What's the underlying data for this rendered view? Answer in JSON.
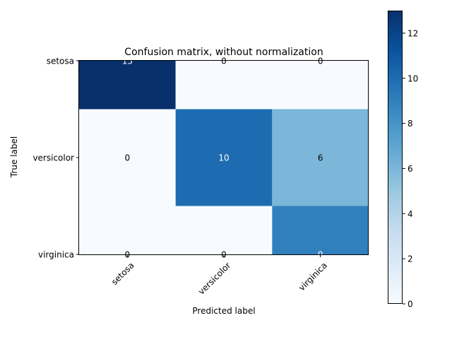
{
  "chart_data": {
    "type": "heatmap",
    "title": "Confusion matrix, without normalization",
    "xlabel": "Predicted label",
    "ylabel": "True label",
    "x_categories": [
      "setosa",
      "versicolor",
      "virginica"
    ],
    "y_categories": [
      "setosa",
      "versicolor",
      "virginica"
    ],
    "values": [
      [
        13,
        0,
        0
      ],
      [
        0,
        10,
        6
      ],
      [
        0,
        0,
        9
      ]
    ],
    "colormap": "Blues",
    "color_range": [
      0,
      13
    ],
    "colorbar_ticks": [
      0,
      2,
      4,
      6,
      8,
      10,
      12
    ],
    "grid": false
  }
}
